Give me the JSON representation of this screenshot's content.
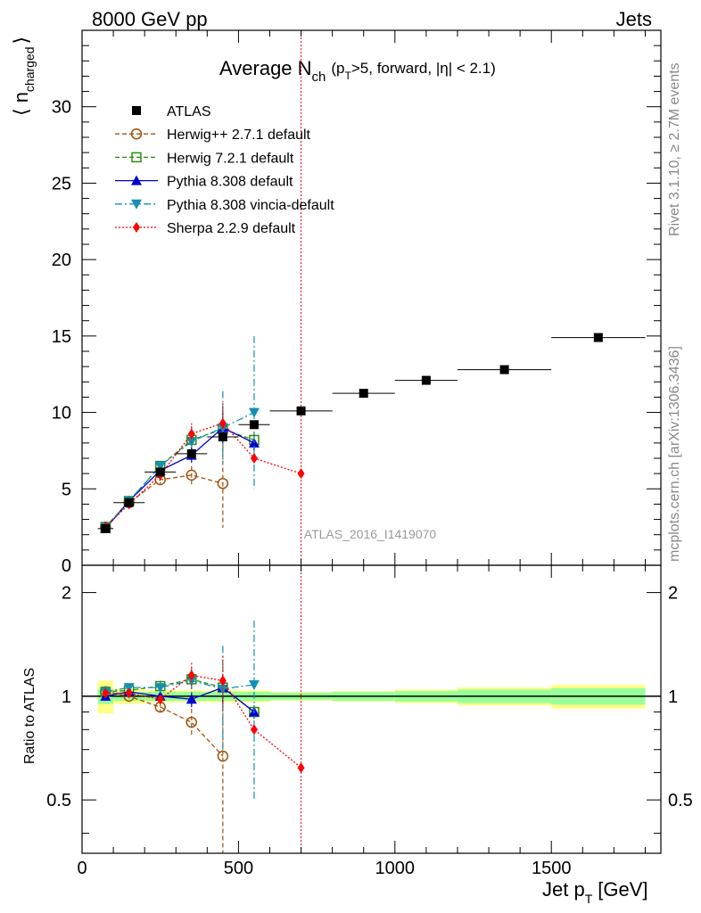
{
  "header": {
    "left": "8000 GeV pp",
    "right": "Jets",
    "title_main": "Average N",
    "title_sub": "ch",
    "title_cut_a": "(p",
    "title_cut_sub": "T",
    "title_cut_b": ">5, forward, |η| < 2.1)",
    "watermark": "ATLAS_2016_I1419070",
    "side_label_1": "Rivet 3.1.10, ≥ 2.7M events",
    "side_label_2": "mcplots.cern.ch [arXiv:1306.3436]"
  },
  "axes": {
    "ylabel_main_a": "⟨ n",
    "ylabel_main_sub": "charged",
    "ylabel_main_b": "⟩",
    "ylabel_ratio": "Ratio to ATLAS",
    "xlabel_a": "Jet p",
    "xlabel_sub": "T",
    "xlabel_b": "[GeV]",
    "x_ticks": [
      "0",
      "500",
      "1000",
      "1500"
    ],
    "y_ticks_main": [
      "0",
      "5",
      "10",
      "15",
      "20",
      "25",
      "30"
    ],
    "y_ticks_ratio": [
      "0.5",
      "1",
      "2"
    ]
  },
  "colors": {
    "atlas": "#000000",
    "herwig_pp": "#a0520a",
    "herwig7": "#2e8b0e",
    "pythia": "#0000cc",
    "vincia": "#1390b3",
    "sherpa": "#ff0000",
    "band_inner": "#99ff99",
    "band_outer": "#ffff88"
  },
  "chart_data": {
    "type": "scatter",
    "title": "Average N_ch (p_T>5, forward, |η| < 2.1)",
    "xlabel": "Jet p_T [GeV]",
    "ylabel": "⟨ n_charged ⟩",
    "xlim": [
      0,
      1850
    ],
    "ylim": [
      0,
      35
    ],
    "ratio_ylim": [
      0.35,
      2.4
    ],
    "ratio_scale": "log",
    "vertical_line_x": 700,
    "legend_position": "top-left",
    "atlas": {
      "name": "ATLAS",
      "x": [
        75,
        150,
        250,
        350,
        450,
        550,
        700,
        900,
        1100,
        1350,
        1650
      ],
      "xlow": [
        50,
        100,
        200,
        300,
        400,
        500,
        600,
        800,
        1000,
        1200,
        1500
      ],
      "xhigh": [
        100,
        200,
        300,
        400,
        500,
        600,
        800,
        1000,
        1200,
        1500,
        1800
      ],
      "y": [
        2.4,
        4.1,
        6.1,
        7.3,
        8.4,
        9.2,
        10.1,
        11.25,
        12.1,
        12.8,
        14.9
      ],
      "band_inner": [
        0.05,
        0.03,
        0.03,
        0.03,
        0.03,
        0.03,
        0.025,
        0.03,
        0.035,
        0.045,
        0.055
      ],
      "band_outer": [
        0.11,
        0.05,
        0.04,
        0.04,
        0.04,
        0.04,
        0.03,
        0.035,
        0.045,
        0.06,
        0.08
      ]
    },
    "series": [
      {
        "name": "Herwig++ 2.7.1 default",
        "key": "herwig_pp",
        "marker": "circle-open",
        "dash": "5,3",
        "x": [
          75,
          150,
          250,
          350,
          450
        ],
        "y": [
          2.5,
          4.1,
          5.6,
          5.9,
          5.35
        ],
        "err": [
          0.1,
          0.2,
          0.3,
          0.6,
          2.9
        ],
        "ratio": [
          1.03,
          1.0,
          0.93,
          0.84,
          0.67
        ],
        "ratio_err": [
          0.02,
          0.02,
          0.03,
          0.08,
          0.4
        ]
      },
      {
        "name": "Herwig 7.2.1 default",
        "key": "herwig7",
        "marker": "square-open",
        "dash": "5,3",
        "x": [
          75,
          150,
          250,
          350,
          450,
          550
        ],
        "y": [
          2.5,
          4.2,
          6.5,
          8.2,
          8.9,
          8.2
        ],
        "err": [
          0.1,
          0.2,
          0.3,
          0.6,
          1.5,
          0.5
        ],
        "ratio": [
          1.03,
          1.04,
          1.07,
          1.12,
          1.06,
          0.9
        ],
        "ratio_err": [
          0.02,
          0.02,
          0.04,
          0.08,
          0.15,
          0.04
        ]
      },
      {
        "name": "Pythia 8.308 default",
        "key": "pythia",
        "marker": "triangle-up",
        "dash": "",
        "x": [
          75,
          150,
          250,
          350,
          450,
          550
        ],
        "y": [
          2.4,
          4.2,
          6.2,
          7.2,
          9.0,
          8.0
        ],
        "err": [
          0.1,
          0.2,
          0.3,
          0.5,
          1.0,
          0.5
        ],
        "ratio": [
          1.0,
          1.03,
          1.0,
          0.98,
          1.06,
          0.9
        ],
        "ratio_err": [
          0.02,
          0.02,
          0.03,
          0.05,
          0.1,
          0.04
        ]
      },
      {
        "name": "Pythia 8.308 vincia-default",
        "key": "vincia",
        "marker": "triangle-down",
        "dash": "8,3,2,3",
        "x": [
          75,
          150,
          250,
          350,
          450,
          550
        ],
        "y": [
          2.5,
          4.2,
          6.5,
          8.1,
          9.0,
          10.0
        ],
        "err": [
          0.1,
          0.2,
          0.3,
          1.0,
          2.4,
          5.0
        ],
        "ratio": [
          1.03,
          1.06,
          1.06,
          1.11,
          1.05,
          1.08
        ],
        "ratio_err": [
          0.02,
          0.02,
          0.04,
          0.1,
          0.35,
          0.58
        ]
      },
      {
        "name": "Sherpa 2.2.9 default",
        "key": "sherpa",
        "marker": "diamond",
        "dash": "2,2",
        "x": [
          75,
          150,
          250,
          350,
          450,
          550,
          700
        ],
        "y": [
          2.5,
          4.0,
          5.9,
          8.6,
          9.3,
          7.0,
          6.0
        ],
        "err": [
          0.1,
          0.2,
          0.3,
          0.7,
          1.3,
          0.0,
          0.0
        ],
        "ratio": [
          1.02,
          1.02,
          0.98,
          1.15,
          1.11,
          0.8,
          0.62
        ],
        "ratio_err": [
          0.02,
          0.02,
          0.03,
          0.1,
          0.2,
          0.0,
          0.0
        ]
      }
    ]
  }
}
